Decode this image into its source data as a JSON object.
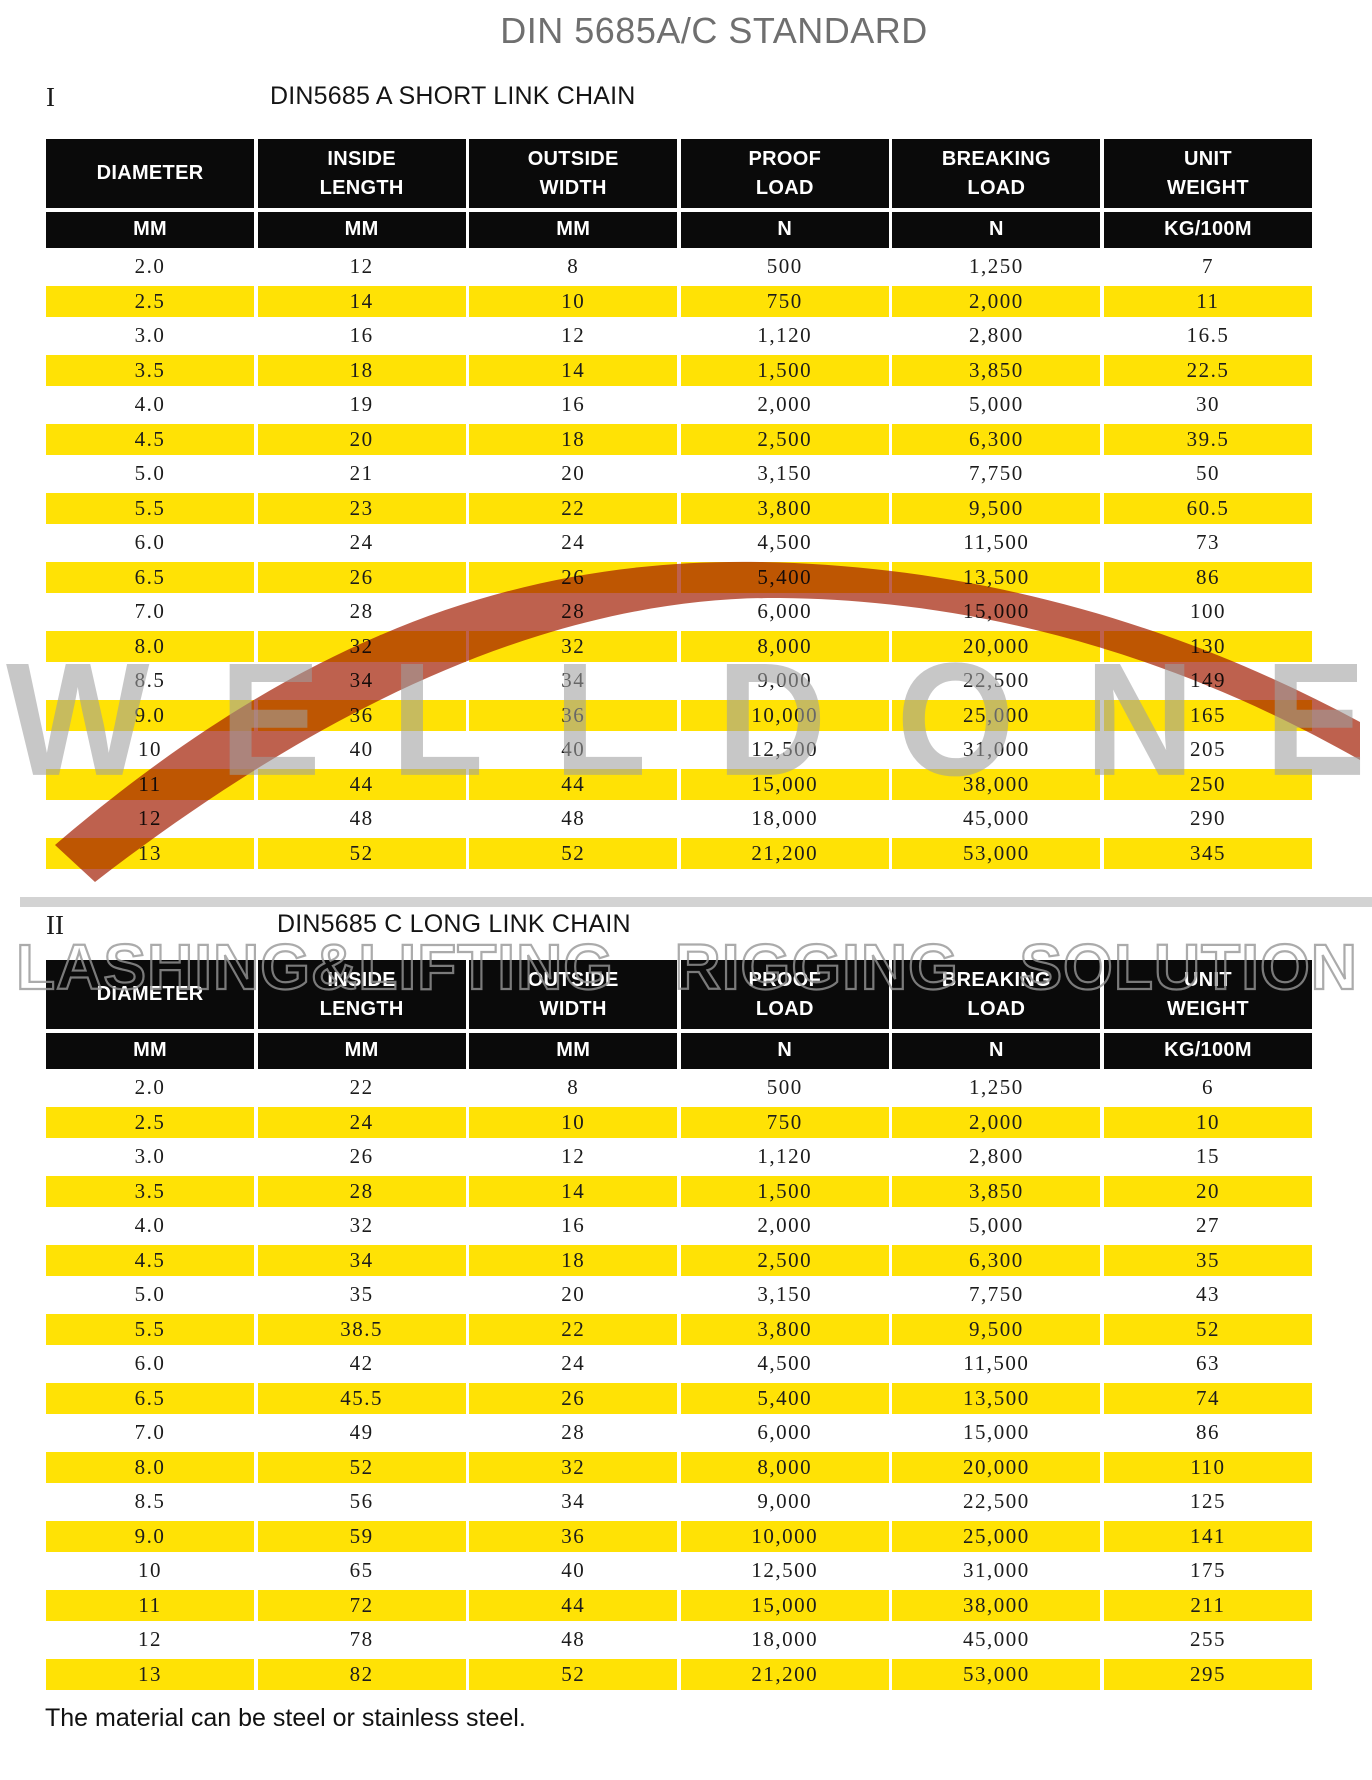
{
  "page": {
    "title": "DIN 5685A/C STANDARD",
    "footnote": "The material can be steel or stainless steel.",
    "watermark": {
      "brand": "WELLDONE",
      "tagline": "LASHING&LIFTING RIGGING SOLUTION"
    }
  },
  "colors": {
    "row_highlight_yellow": "#ffe205",
    "header_black": "#0a0a0a",
    "watermark_red": "#ae3a22",
    "watermark_gray": "#9e9e9e",
    "title_gray": "#6f6f6f"
  },
  "columns": {
    "headers": [
      "DIAMETER",
      "INSIDE\nLENGTH",
      "OUTSIDE\nWIDTH",
      "PROOF\nLOAD",
      "BREAKING\nLOAD",
      "UNIT\nWEIGHT"
    ],
    "units": [
      "MM",
      "MM",
      "MM",
      "N",
      "N",
      "KG/100M"
    ]
  },
  "sections": [
    {
      "numeral": "I",
      "heading": "DIN5685 A SHORT LINK CHAIN",
      "rows": [
        [
          "2.0",
          "12",
          "8",
          "500",
          "1,250",
          "7"
        ],
        [
          "2.5",
          "14",
          "10",
          "750",
          "2,000",
          "11"
        ],
        [
          "3.0",
          "16",
          "12",
          "1,120",
          "2,800",
          "16.5"
        ],
        [
          "3.5",
          "18",
          "14",
          "1,500",
          "3,850",
          "22.5"
        ],
        [
          "4.0",
          "19",
          "16",
          "2,000",
          "5,000",
          "30"
        ],
        [
          "4.5",
          "20",
          "18",
          "2,500",
          "6,300",
          "39.5"
        ],
        [
          "5.0",
          "21",
          "20",
          "3,150",
          "7,750",
          "50"
        ],
        [
          "5.5",
          "23",
          "22",
          "3,800",
          "9,500",
          "60.5"
        ],
        [
          "6.0",
          "24",
          "24",
          "4,500",
          "11,500",
          "73"
        ],
        [
          "6.5",
          "26",
          "26",
          "5,400",
          "13,500",
          "86"
        ],
        [
          "7.0",
          "28",
          "28",
          "6,000",
          "15,000",
          "100"
        ],
        [
          "8.0",
          "32",
          "32",
          "8,000",
          "20,000",
          "130"
        ],
        [
          "8.5",
          "34",
          "34",
          "9,000",
          "22,500",
          "149"
        ],
        [
          "9.0",
          "36",
          "36",
          "10,000",
          "25,000",
          "165"
        ],
        [
          "10",
          "40",
          "40",
          "12,500",
          "31,000",
          "205"
        ],
        [
          "11",
          "44",
          "44",
          "15,000",
          "38,000",
          "250"
        ],
        [
          "12",
          "48",
          "48",
          "18,000",
          "45,000",
          "290"
        ],
        [
          "13",
          "52",
          "52",
          "21,200",
          "53,000",
          "345"
        ]
      ]
    },
    {
      "numeral": "II",
      "heading": "DIN5685 C LONG LINK CHAIN",
      "rows": [
        [
          "2.0",
          "22",
          "8",
          "500",
          "1,250",
          "6"
        ],
        [
          "2.5",
          "24",
          "10",
          "750",
          "2,000",
          "10"
        ],
        [
          "3.0",
          "26",
          "12",
          "1,120",
          "2,800",
          "15"
        ],
        [
          "3.5",
          "28",
          "14",
          "1,500",
          "3,850",
          "20"
        ],
        [
          "4.0",
          "32",
          "16",
          "2,000",
          "5,000",
          "27"
        ],
        [
          "4.5",
          "34",
          "18",
          "2,500",
          "6,300",
          "35"
        ],
        [
          "5.0",
          "35",
          "20",
          "3,150",
          "7,750",
          "43"
        ],
        [
          "5.5",
          "38.5",
          "22",
          "3,800",
          "9,500",
          "52"
        ],
        [
          "6.0",
          "42",
          "24",
          "4,500",
          "11,500",
          "63"
        ],
        [
          "6.5",
          "45.5",
          "26",
          "5,400",
          "13,500",
          "74"
        ],
        [
          "7.0",
          "49",
          "28",
          "6,000",
          "15,000",
          "86"
        ],
        [
          "8.0",
          "52",
          "32",
          "8,000",
          "20,000",
          "110"
        ],
        [
          "8.5",
          "56",
          "34",
          "9,000",
          "22,500",
          "125"
        ],
        [
          "9.0",
          "59",
          "36",
          "10,000",
          "25,000",
          "141"
        ],
        [
          "10",
          "65",
          "40",
          "12,500",
          "31,000",
          "175"
        ],
        [
          "11",
          "72",
          "44",
          "15,000",
          "38,000",
          "211"
        ],
        [
          "12",
          "78",
          "48",
          "18,000",
          "45,000",
          "255"
        ],
        [
          "13",
          "82",
          "52",
          "21,200",
          "53,000",
          "295"
        ]
      ]
    }
  ]
}
